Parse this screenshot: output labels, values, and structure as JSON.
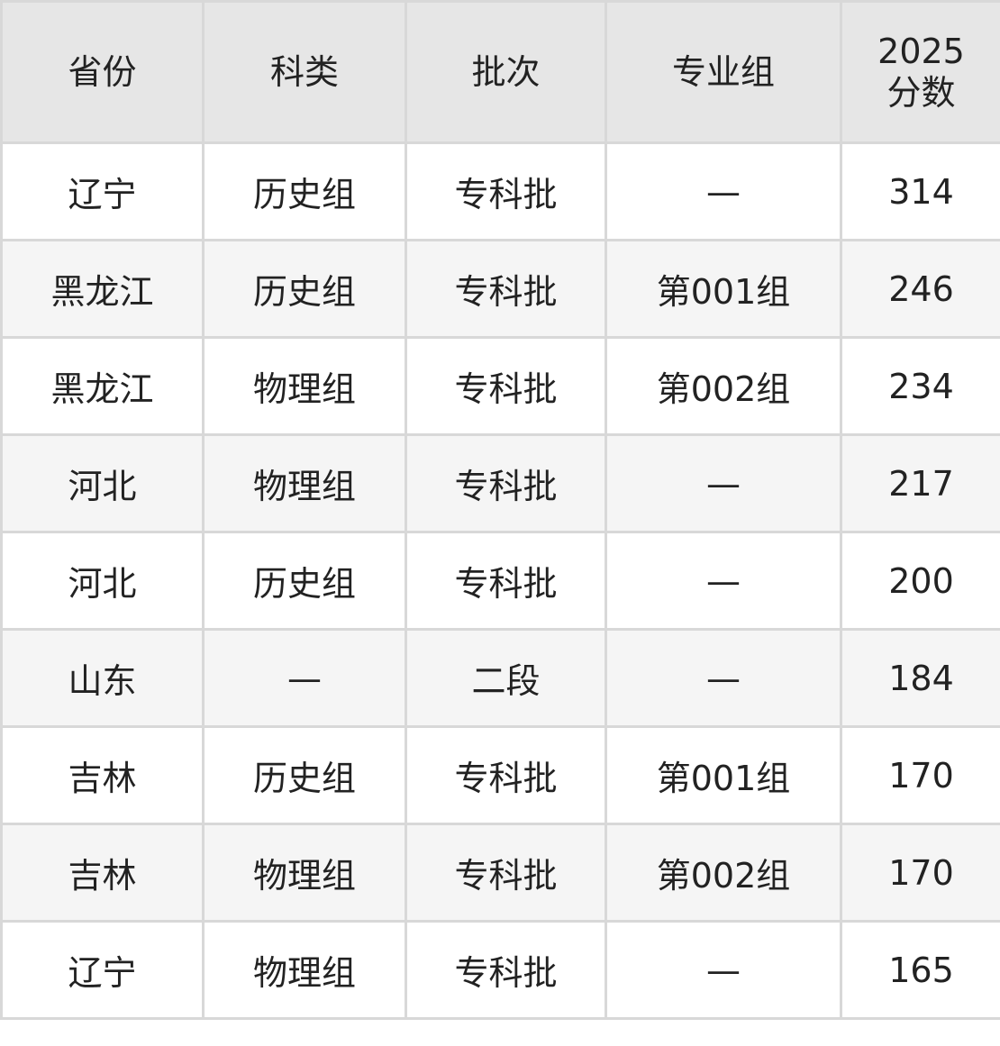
{
  "table": {
    "headers": [
      "省份",
      "科类",
      "批次",
      "专业组"
    ],
    "score_header": {
      "year": "2025",
      "label": "分数"
    },
    "rows": [
      [
        "辽宁",
        "历史组",
        "专科批",
        "—",
        "314"
      ],
      [
        "黑龙江",
        "历史组",
        "专科批",
        "第001组",
        "246"
      ],
      [
        "黑龙江",
        "物理组",
        "专科批",
        "第002组",
        "234"
      ],
      [
        "河北",
        "物理组",
        "专科批",
        "—",
        "217"
      ],
      [
        "河北",
        "历史组",
        "专科批",
        "—",
        "200"
      ],
      [
        "山东",
        "—",
        "二段",
        "—",
        "184"
      ],
      [
        "吉林",
        "历史组",
        "专科批",
        "第001组",
        "170"
      ],
      [
        "吉林",
        "物理组",
        "专科批",
        "第002组",
        "170"
      ],
      [
        "辽宁",
        "物理组",
        "专科批",
        "—",
        "165"
      ]
    ]
  },
  "colors": {
    "header_bg": "#e6e6e6",
    "stripe_bg": "#f5f5f5",
    "border": "#d8d8d8",
    "text": "#222222"
  }
}
